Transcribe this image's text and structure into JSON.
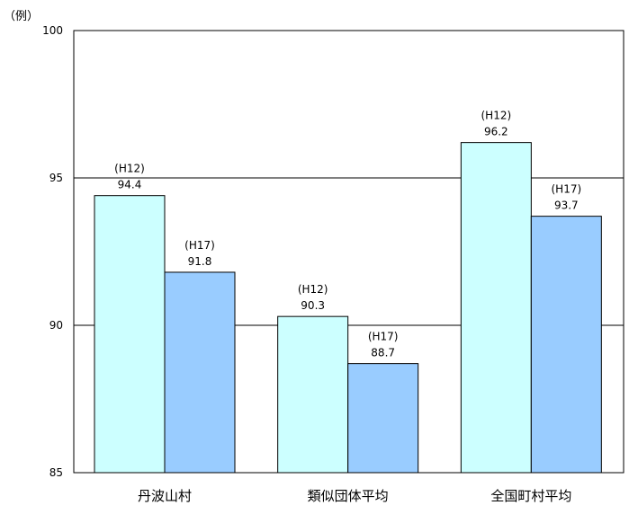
{
  "chart_data": {
    "type": "bar",
    "unit_label": "（例）",
    "categories": [
      "丹波山村",
      "類似団体平均",
      "全国町村平均"
    ],
    "series": [
      {
        "name": "(H12)",
        "values": [
          94.4,
          90.3,
          96.2
        ],
        "color": "#ccffff"
      },
      {
        "name": "(H17)",
        "values": [
          91.8,
          88.7,
          93.7
        ],
        "color": "#99ccff"
      }
    ],
    "ylim": [
      85,
      100
    ],
    "yticks": [
      85,
      90,
      95,
      100
    ],
    "grid": true,
    "legend": "none"
  }
}
